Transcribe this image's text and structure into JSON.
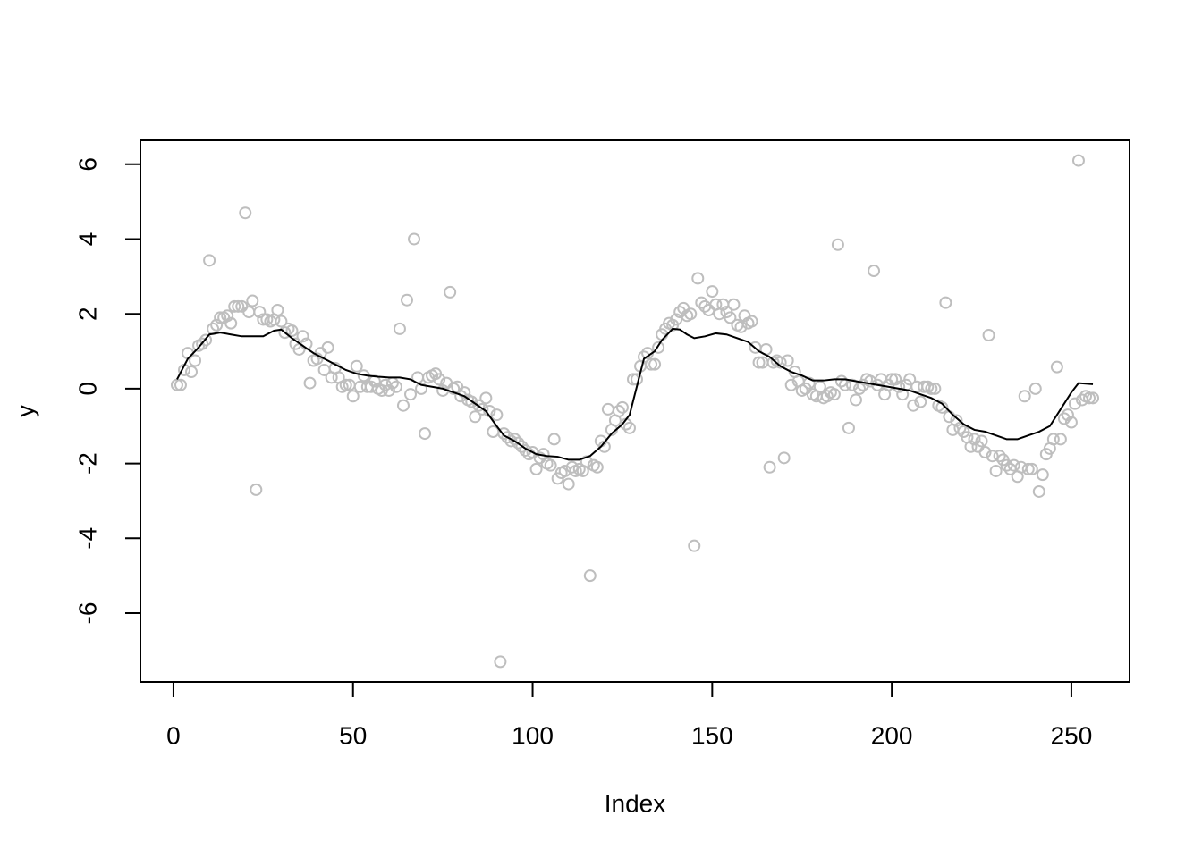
{
  "chart_data": {
    "type": "scatter",
    "x_label": "Index",
    "y_label": "y",
    "xlim": [
      -9.2,
      266.2
    ],
    "ylim": [
      -7.84,
      6.64
    ],
    "xticks": [
      0,
      50,
      100,
      150,
      200,
      250
    ],
    "yticks": [
      -6,
      -4,
      -2,
      0,
      2,
      4,
      6
    ],
    "color": "#bebebe",
    "x": [
      1,
      2,
      3,
      4,
      5,
      6,
      7,
      8,
      9,
      10,
      11,
      12,
      13,
      14,
      15,
      16,
      17,
      18,
      19,
      20,
      21,
      22,
      23,
      24,
      25,
      26,
      27,
      28,
      29,
      30,
      31,
      32,
      33,
      34,
      35,
      36,
      37,
      38,
      39,
      40,
      41,
      42,
      43,
      44,
      45,
      46,
      47,
      48,
      49,
      50,
      51,
      52,
      53,
      54,
      55,
      56,
      57,
      58,
      59,
      60,
      61,
      62,
      63,
      64,
      65,
      66,
      67,
      68,
      69,
      70,
      71,
      72,
      73,
      74,
      75,
      76,
      77,
      78,
      79,
      80,
      81,
      82,
      83,
      84,
      85,
      86,
      87,
      88,
      89,
      90,
      91,
      92,
      93,
      94,
      95,
      96,
      97,
      98,
      99,
      100,
      101,
      102,
      103,
      104,
      105,
      106,
      107,
      108,
      109,
      110,
      111,
      112,
      113,
      114,
      115,
      116,
      117,
      118,
      119,
      120,
      121,
      122,
      123,
      124,
      125,
      126,
      127,
      128,
      129,
      130,
      131,
      132,
      133,
      134,
      135,
      136,
      137,
      138,
      139,
      140,
      141,
      142,
      143,
      144,
      145,
      146,
      147,
      148,
      149,
      150,
      151,
      152,
      153,
      154,
      155,
      156,
      157,
      158,
      159,
      160,
      161,
      162,
      163,
      164,
      165,
      166,
      167,
      168,
      169,
      170,
      171,
      172,
      173,
      174,
      175,
      176,
      177,
      178,
      179,
      180,
      181,
      182,
      183,
      184,
      185,
      186,
      187,
      188,
      189,
      190,
      191,
      192,
      193,
      194,
      195,
      196,
      197,
      198,
      199,
      200,
      201,
      202,
      203,
      204,
      205,
      206,
      207,
      208,
      209,
      210,
      211,
      212,
      213,
      214,
      215,
      216,
      217,
      218,
      219,
      220,
      221,
      222,
      223,
      224,
      225,
      226,
      227,
      228,
      229,
      230,
      231,
      232,
      233,
      234,
      235,
      236,
      237,
      238,
      239,
      240,
      241,
      242,
      243,
      244,
      245,
      246,
      247,
      248,
      249,
      250,
      251,
      252,
      253,
      254,
      255,
      256
    ],
    "values": [
      0.1,
      0.1,
      0.5,
      0.95,
      0.45,
      0.75,
      1.15,
      1.2,
      1.3,
      3.43,
      1.6,
      1.7,
      1.9,
      1.9,
      1.95,
      1.75,
      2.2,
      2.2,
      2.2,
      4.7,
      2.05,
      2.35,
      -2.7,
      2.05,
      1.85,
      1.85,
      1.8,
      1.85,
      2.1,
      1.8,
      1.5,
      1.6,
      1.55,
      1.2,
      1.05,
      1.4,
      1.2,
      0.15,
      0.75,
      0.8,
      0.95,
      0.5,
      1.1,
      0.3,
      0.55,
      0.3,
      0.05,
      0.1,
      0.1,
      -0.2,
      0.6,
      0.05,
      0.35,
      0.05,
      0.05,
      0.2,
      0.0,
      -0.05,
      0.1,
      -0.05,
      0.15,
      0.05,
      1.6,
      -0.45,
      2.37,
      -0.15,
      4.0,
      0.3,
      0.0,
      -1.2,
      0.3,
      0.35,
      0.4,
      0.25,
      -0.05,
      0.15,
      2.58,
      0.0,
      0.05,
      -0.2,
      -0.1,
      -0.3,
      -0.35,
      -0.75,
      -0.45,
      -0.55,
      -0.25,
      -0.6,
      -1.15,
      -0.7,
      -7.3,
      -1.2,
      -1.3,
      -1.4,
      -1.35,
      -1.45,
      -1.55,
      -1.65,
      -1.75,
      -1.7,
      -2.15,
      -1.85,
      -1.75,
      -2.0,
      -2.05,
      -1.35,
      -2.4,
      -2.25,
      -2.2,
      -2.55,
      -2.1,
      -2.2,
      -2.15,
      -2.2,
      -1.95,
      -5.0,
      -2.05,
      -2.1,
      -1.4,
      -1.55,
      -0.55,
      -1.1,
      -0.85,
      -0.6,
      -0.5,
      -0.95,
      -1.05,
      0.25,
      0.25,
      0.6,
      0.85,
      0.95,
      0.65,
      0.65,
      1.1,
      1.45,
      1.6,
      1.75,
      1.7,
      1.85,
      2.05,
      2.15,
      1.95,
      2.0,
      -4.2,
      2.95,
      2.3,
      2.2,
      2.1,
      2.6,
      2.25,
      2.0,
      2.25,
      2.05,
      1.9,
      2.25,
      1.7,
      1.65,
      1.95,
      1.75,
      1.8,
      1.1,
      0.7,
      0.7,
      1.05,
      -2.1,
      0.7,
      0.75,
      0.7,
      -1.85,
      0.75,
      0.1,
      0.45,
      0.2,
      -0.05,
      0.0,
      0.15,
      -0.15,
      -0.2,
      0.05,
      -0.25,
      -0.2,
      -0.1,
      -0.15,
      3.85,
      0.2,
      0.1,
      -1.05,
      0.1,
      -0.3,
      0.0,
      0.1,
      0.25,
      0.2,
      3.15,
      0.1,
      0.25,
      -0.15,
      0.1,
      0.25,
      0.25,
      0.05,
      -0.15,
      0.1,
      0.25,
      -0.45,
      0.05,
      -0.35,
      0.05,
      0.05,
      0.0,
      0.0,
      -0.45,
      -0.5,
      2.3,
      -0.75,
      -1.1,
      -0.85,
      -1.05,
      -1.15,
      -1.3,
      -1.55,
      -1.35,
      -1.55,
      -1.4,
      -1.7,
      1.43,
      -1.8,
      -2.2,
      -1.8,
      -1.9,
      -2.05,
      -2.15,
      -2.05,
      -2.35,
      -2.1,
      -0.2,
      -2.15,
      -2.15,
      0.0,
      -2.75,
      -2.3,
      -1.75,
      -1.6,
      -1.35,
      0.58,
      -1.35,
      -0.8,
      -0.7,
      -0.9,
      -0.4,
      6.1,
      -0.3,
      -0.2,
      -0.25,
      -0.25
    ],
    "smooth": {
      "color": "#000000",
      "x": [
        1,
        4,
        7,
        10,
        13,
        16,
        19,
        22,
        25,
        28,
        30,
        33,
        36,
        39,
        42,
        45,
        48,
        51,
        54,
        57,
        60,
        63,
        66,
        69,
        72,
        75,
        78,
        81,
        84,
        87,
        90,
        92,
        95,
        98,
        101,
        104,
        107,
        110,
        113,
        116,
        119,
        122,
        125,
        127,
        129,
        131,
        134,
        136,
        139,
        141,
        143,
        145,
        148,
        151,
        154,
        157,
        160,
        163,
        166,
        169,
        172,
        175,
        178,
        181,
        184,
        187,
        190,
        193,
        196,
        199,
        202,
        205,
        208,
        211,
        214,
        217,
        220,
        223,
        226,
        229,
        232,
        235,
        238,
        241,
        244,
        247,
        250,
        252,
        256
      ],
      "values": [
        0.25,
        0.8,
        1.1,
        1.45,
        1.5,
        1.45,
        1.4,
        1.4,
        1.4,
        1.55,
        1.58,
        1.35,
        1.15,
        0.95,
        0.8,
        0.65,
        0.5,
        0.4,
        0.35,
        0.32,
        0.3,
        0.3,
        0.25,
        0.1,
        0.05,
        0.0,
        -0.1,
        -0.2,
        -0.4,
        -0.6,
        -1.0,
        -1.25,
        -1.4,
        -1.6,
        -1.75,
        -1.8,
        -1.82,
        -1.9,
        -1.9,
        -1.8,
        -1.55,
        -1.2,
        -0.95,
        -0.7,
        0.05,
        0.8,
        1.0,
        1.3,
        1.6,
        1.58,
        1.45,
        1.35,
        1.4,
        1.48,
        1.45,
        1.35,
        1.25,
        1.0,
        0.85,
        0.6,
        0.45,
        0.35,
        0.22,
        0.22,
        0.25,
        0.25,
        0.2,
        0.15,
        0.1,
        0.05,
        0.0,
        -0.05,
        -0.15,
        -0.25,
        -0.4,
        -0.7,
        -0.95,
        -1.1,
        -1.15,
        -1.25,
        -1.35,
        -1.35,
        -1.25,
        -1.15,
        -1.0,
        -0.55,
        -0.1,
        0.15,
        0.12
      ]
    }
  }
}
